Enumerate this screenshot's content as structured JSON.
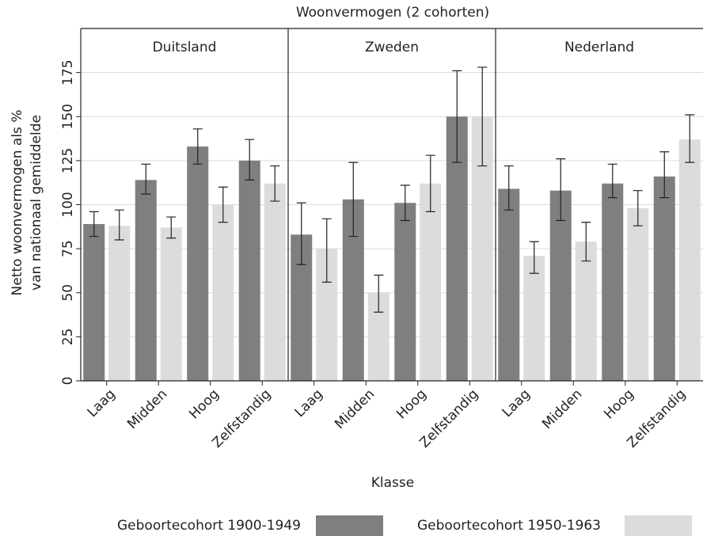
{
  "chart_data": {
    "type": "bar",
    "title": "Woonvermogen (2 cohorten)",
    "ylabel": [
      "Netto woonvermogen als %",
      "van nationaal gemiddelde"
    ],
    "xlabel": "Klasse",
    "categories": [
      "Laag",
      "Midden",
      "Hoog",
      "Zelfstandig"
    ],
    "ylim": [
      0,
      200
    ],
    "yticks": [
      0,
      25,
      50,
      75,
      100,
      125,
      150,
      175
    ],
    "grid": true,
    "series": [
      {
        "name": "Geboortecohort 1900-1949",
        "color": "#7f7f7f"
      },
      {
        "name": "Geboortecohort 1950-1963",
        "color": "#dcdcdc"
      }
    ],
    "panels": [
      {
        "name": "Duitsland",
        "series": [
          {
            "values": [
              89,
              114,
              133,
              125
            ],
            "lower": [
              82,
              106,
              123,
              114
            ],
            "upper": [
              96,
              123,
              143,
              137
            ]
          },
          {
            "values": [
              88,
              87,
              100,
              112
            ],
            "lower": [
              80,
              81,
              90,
              102
            ],
            "upper": [
              97,
              93,
              110,
              122
            ]
          }
        ]
      },
      {
        "name": "Zweden",
        "series": [
          {
            "values": [
              83,
              103,
              101,
              150
            ],
            "lower": [
              66,
              82,
              91,
              124
            ],
            "upper": [
              101,
              124,
              111,
              176
            ]
          },
          {
            "values": [
              75,
              50,
              112,
              150
            ],
            "lower": [
              56,
              39,
              96,
              122
            ],
            "upper": [
              92,
              60,
              128,
              178
            ]
          }
        ]
      },
      {
        "name": "Nederland",
        "series": [
          {
            "values": [
              109,
              108,
              112,
              116
            ],
            "lower": [
              97,
              91,
              104,
              104
            ],
            "upper": [
              122,
              126,
              123,
              130
            ]
          },
          {
            "values": [
              71,
              79,
              98,
              137
            ],
            "lower": [
              61,
              68,
              88,
              124
            ],
            "upper": [
              79,
              90,
              108,
              151
            ]
          }
        ]
      }
    ]
  }
}
